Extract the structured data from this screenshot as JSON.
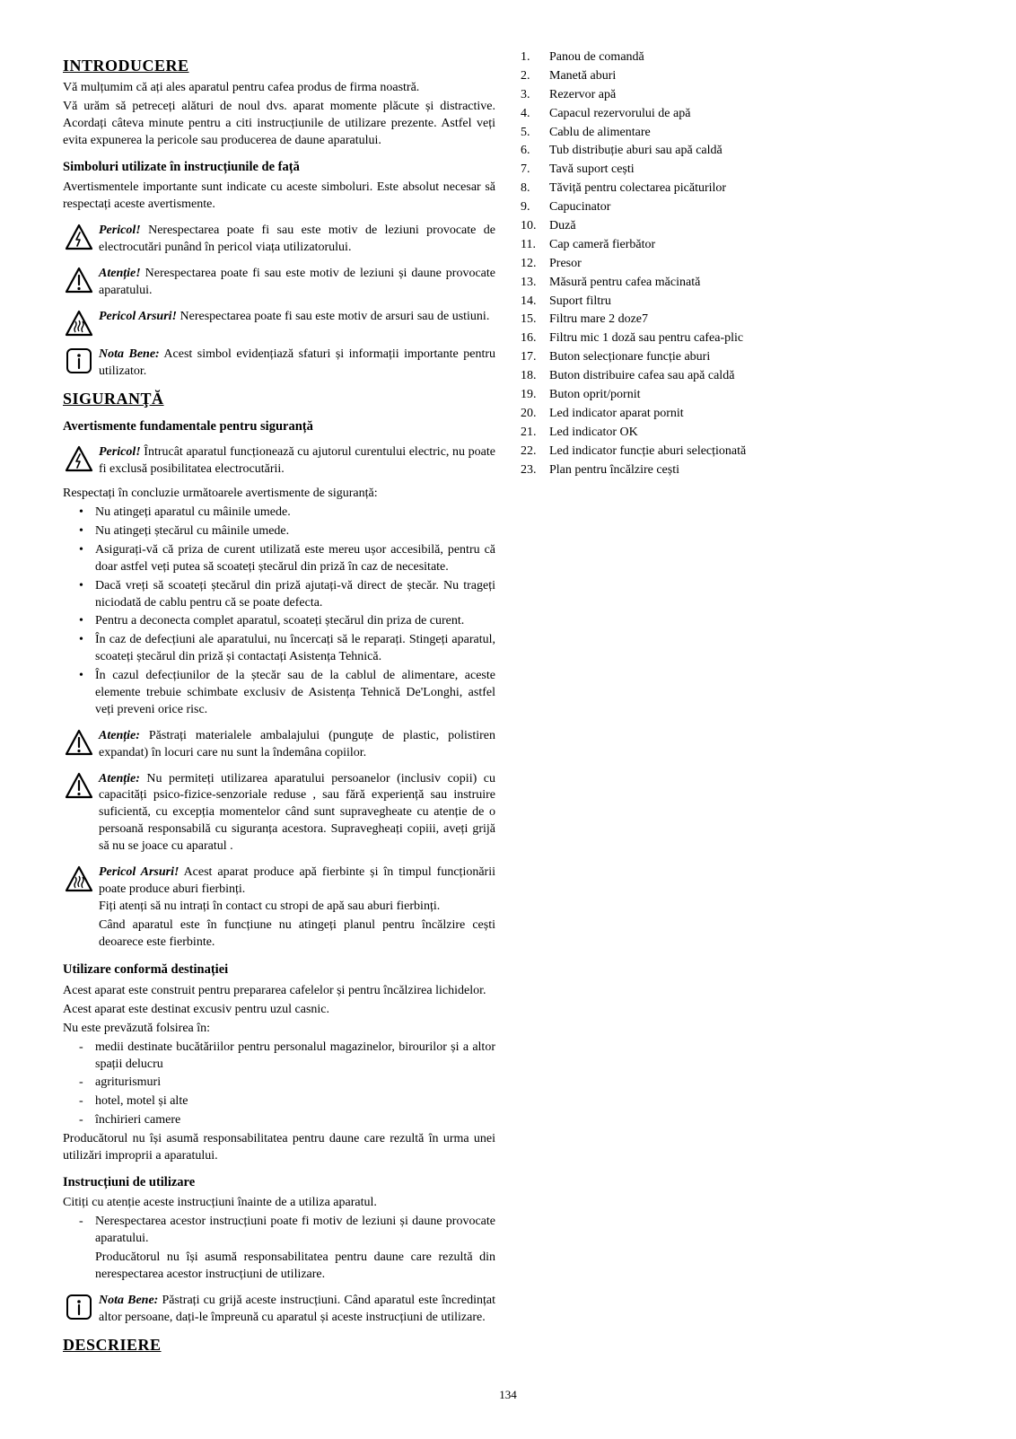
{
  "page_number": "134",
  "sections": {
    "intro": {
      "title": "INTRODUCERE",
      "p1": "Vă mulțumim că ați ales aparatul pentru cafea produs de firma noastră.",
      "p2": "Vă urăm să petreceți alături de noul dvs. aparat momente plăcute și distractive. Acordați câteva minute pentru a citi instrucțiunile de utilizare prezente. Astfel veți evita expunerea la pericole sau producerea de daune aparatului.",
      "symbols_heading": "Simboluri utilizate în instrucțiunile de față",
      "symbols_intro": "Avertismentele importante sunt indicate cu aceste simboluri. Este absolut necesar să respectați aceste avertismente.",
      "danger_lead": "Pericol!",
      "danger_text": " Nerespectarea poate fi sau este motiv de leziuni provocate de electrocutări punând în pericol viața utilizatorului.",
      "attention_lead": "Atenție!",
      "attention_text": " Nerespectarea poate fi sau este motiv de leziuni și daune provocate aparatului.",
      "burn_lead": "Pericol Arsuri!",
      "burn_text": " Nerespectarea poate fi sau este motiv de arsuri sau de ustiuni.",
      "nb_lead": "Nota Bene:",
      "nb_text": " Acest simbol evidențiază sfaturi și informații importante pentru utilizator."
    },
    "safety": {
      "title": "SIGURANŢĂ",
      "sub1": "Avertismente fundamentale pentru siguranță",
      "danger2_lead": "Pericol!",
      "danger2_text": " Întrucât aparatul funcționează cu ajutorul curentului electric, nu poate fi exclusă posibilitatea electrocutării.",
      "danger2_after": "Respectați în concluzie următoarele avertismente de siguranță:",
      "bullets": [
        "Nu atingeți aparatul cu mâinile umede.",
        "Nu atingeți ștecărul cu mâinile umede.",
        "Asigurați-vă că priza de curent utilizată este mereu ușor accesibilă, pentru că doar astfel veți putea să scoateți ștecărul din priză în caz de necesitate.",
        "Dacă vreți să scoateți ștecărul din priză ajutați-vă direct de ștecăr. Nu trageți niciodată de cablu pentru că se poate defecta.",
        "Pentru a deconecta complet aparatul, scoateți ștecărul din priza de curent.",
        "În caz de defecțiuni ale aparatului, nu încercați să le reparați. Stingeți aparatul, scoateți ștecărul din priză și contactați Asistența Tehnică.",
        "În cazul defecțiunilor de la ștecăr sau de la cablul de alimentare, aceste elemente trebuie schimbate exclusiv de Asistența Tehnică De'Longhi, astfel veți preveni orice risc."
      ],
      "att1_lead": "Atenție:",
      "att1_text": " Păstrați materialele ambalajului (punguțe de plastic, polistiren expandat) în locuri care nu sunt la îndemâna copiilor.",
      "att2_lead": "Atenție:",
      "att2_text": " Nu permiteți utilizarea aparatului persoanelor (inclusiv copii) cu capacități psico-fizice-senzoriale reduse , sau fără experiență sau instruire suficientă, cu excepția momentelor când sunt supravegheate cu atenție de o persoană responsabilă cu siguranța acestora. Supravegheați copiii, aveți grijă să nu se joace cu aparatul .",
      "burn2_lead": "Pericol Arsuri!",
      "burn2_text": " Acest aparat produce apă fierbinte și în timpul funcționării poate produce aburi fierbinți.",
      "burn2_p2": "Fiți atenți să nu intrați în contact cu stropi de apă sau aburi fierbinți.",
      "burn2_p3": "Când aparatul este în funcțiune nu atingeți planul pentru încălzire cești deoarece este fierbinte.",
      "use_heading": "Utilizare conformă destinației",
      "use_p1": "Acest aparat este construit pentru prepararea cafelelor și pentru încălzirea lichidelor.",
      "use_p2": "Acest aparat este destinat excusiv pentru uzul casnic.",
      "use_p3": "Nu este prevăzută folsirea în:",
      "use_dashes": [
        "medii destinate bucătăriilor pentru personalul magazinelor, birourilor și a altor spații delucru",
        "agriturismuri",
        "hotel, motel și alte",
        "închirieri camere"
      ],
      "use_p4": "Producătorul nu își asumă responsabilitatea pentru daune care rezultă în urma unei utilizări improprii a aparatului.",
      "instr_heading": "Instrucțiuni de utilizare",
      "instr_p1": "Citiți cu atenție aceste instrucțiuni înainte de a utiliza aparatul.",
      "instr_dashes": [
        "Nerespectarea acestor instrucțiuni poate fi motiv de leziuni și daune provocate aparatului.\nProducătorul nu își asumă responsabilitatea pentru daune care rezultă din nerespectarea acestor instrucțiuni de utilizare."
      ],
      "nb2_lead": "Nota Bene:",
      "nb2_text": " Păstrați cu grijă aceste instrucțiuni. Când aparatul este încredințat altor persoane, dați-le împreună cu aparatul și aceste instrucțiuni de utilizare."
    },
    "desc": {
      "title": "DESCRIERE",
      "items": [
        "Panou de comandă",
        "Manetă aburi",
        "Rezervor apă",
        "Capacul rezervorului de apă",
        "Cablu de alimentare",
        "Tub distribuție aburi sau apă caldă",
        "Tavă suport cești",
        "Tăviță pentru colectarea picăturilor",
        "Capucinator",
        "Duză",
        "Cap cameră fierbător",
        "Presor",
        "Măsură pentru cafea măcinată",
        "Suport filtru",
        "Filtru mare 2 doze7",
        "Filtru mic 1 doză sau pentru cafea-plic",
        "Buton selecționare funcție aburi",
        "Buton distribuire cafea sau apă caldă",
        "Buton oprit/pornit",
        "Led indicator aparat pornit",
        "Led indicator OK",
        "Led indicator funcție aburi selecționată",
        "Plan pentru încălzire cești"
      ]
    }
  }
}
